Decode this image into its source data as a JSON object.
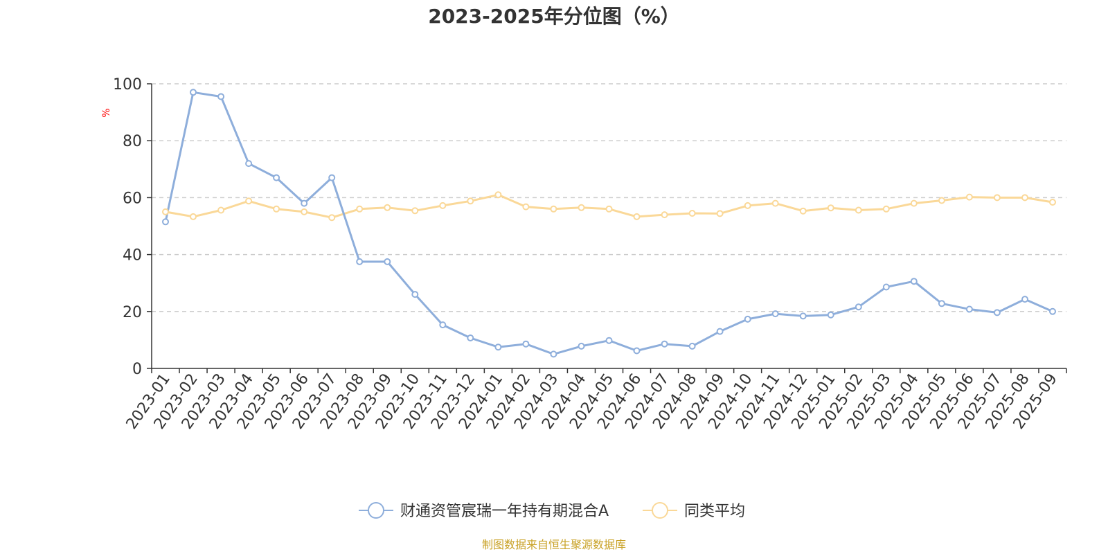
{
  "chart_data": {
    "type": "line",
    "title": "2023-2025年分位图（%）",
    "ylabel": "%",
    "ylim": [
      0,
      100
    ],
    "yticks": [
      0,
      20,
      40,
      60,
      80,
      100
    ],
    "grid": true,
    "legend_position": "bottom",
    "categories": [
      "2023-01",
      "2023-02",
      "2023-03",
      "2023-04",
      "2023-05",
      "2023-06",
      "2023-07",
      "2023-08",
      "2023-09",
      "2023-10",
      "2023-11",
      "2023-12",
      "2024-01",
      "2024-02",
      "2024-03",
      "2024-04",
      "2024-05",
      "2024-06",
      "2024-07",
      "2024-08",
      "2024-09",
      "2024-10",
      "2024-11",
      "2024-12",
      "2025-01",
      "2025-02",
      "2025-03",
      "2025-04",
      "2025-05",
      "2025-06",
      "2025-07",
      "2025-08",
      "2025-09"
    ],
    "series": [
      {
        "name": "财通资管宸瑞一年持有期混合A",
        "color": "#8eaedb",
        "values": [
          51.5,
          97,
          95.5,
          72,
          67,
          58,
          67,
          37.5,
          37.5,
          26,
          15.3,
          10.7,
          7.5,
          8.6,
          5,
          7.8,
          9.8,
          6.2,
          8.6,
          7.8,
          13,
          17.3,
          19.2,
          18.4,
          18.8,
          21.6,
          28.6,
          30.6,
          22.8,
          20.8,
          19.6,
          24.3,
          20
        ]
      },
      {
        "name": "同类平均",
        "color": "#fad898",
        "values": [
          55,
          53.3,
          55.6,
          58.8,
          56,
          55,
          53,
          56,
          56.5,
          55.4,
          57.2,
          58.8,
          61,
          56.8,
          56,
          56.5,
          56,
          53.3,
          54,
          54.5,
          54.4,
          57.2,
          58,
          55.3,
          56.4,
          55.6,
          56,
          58,
          59,
          60.2,
          60,
          60,
          58.4
        ]
      }
    ]
  },
  "footer": {
    "source": "制图数据来自恒生聚源数据库"
  }
}
